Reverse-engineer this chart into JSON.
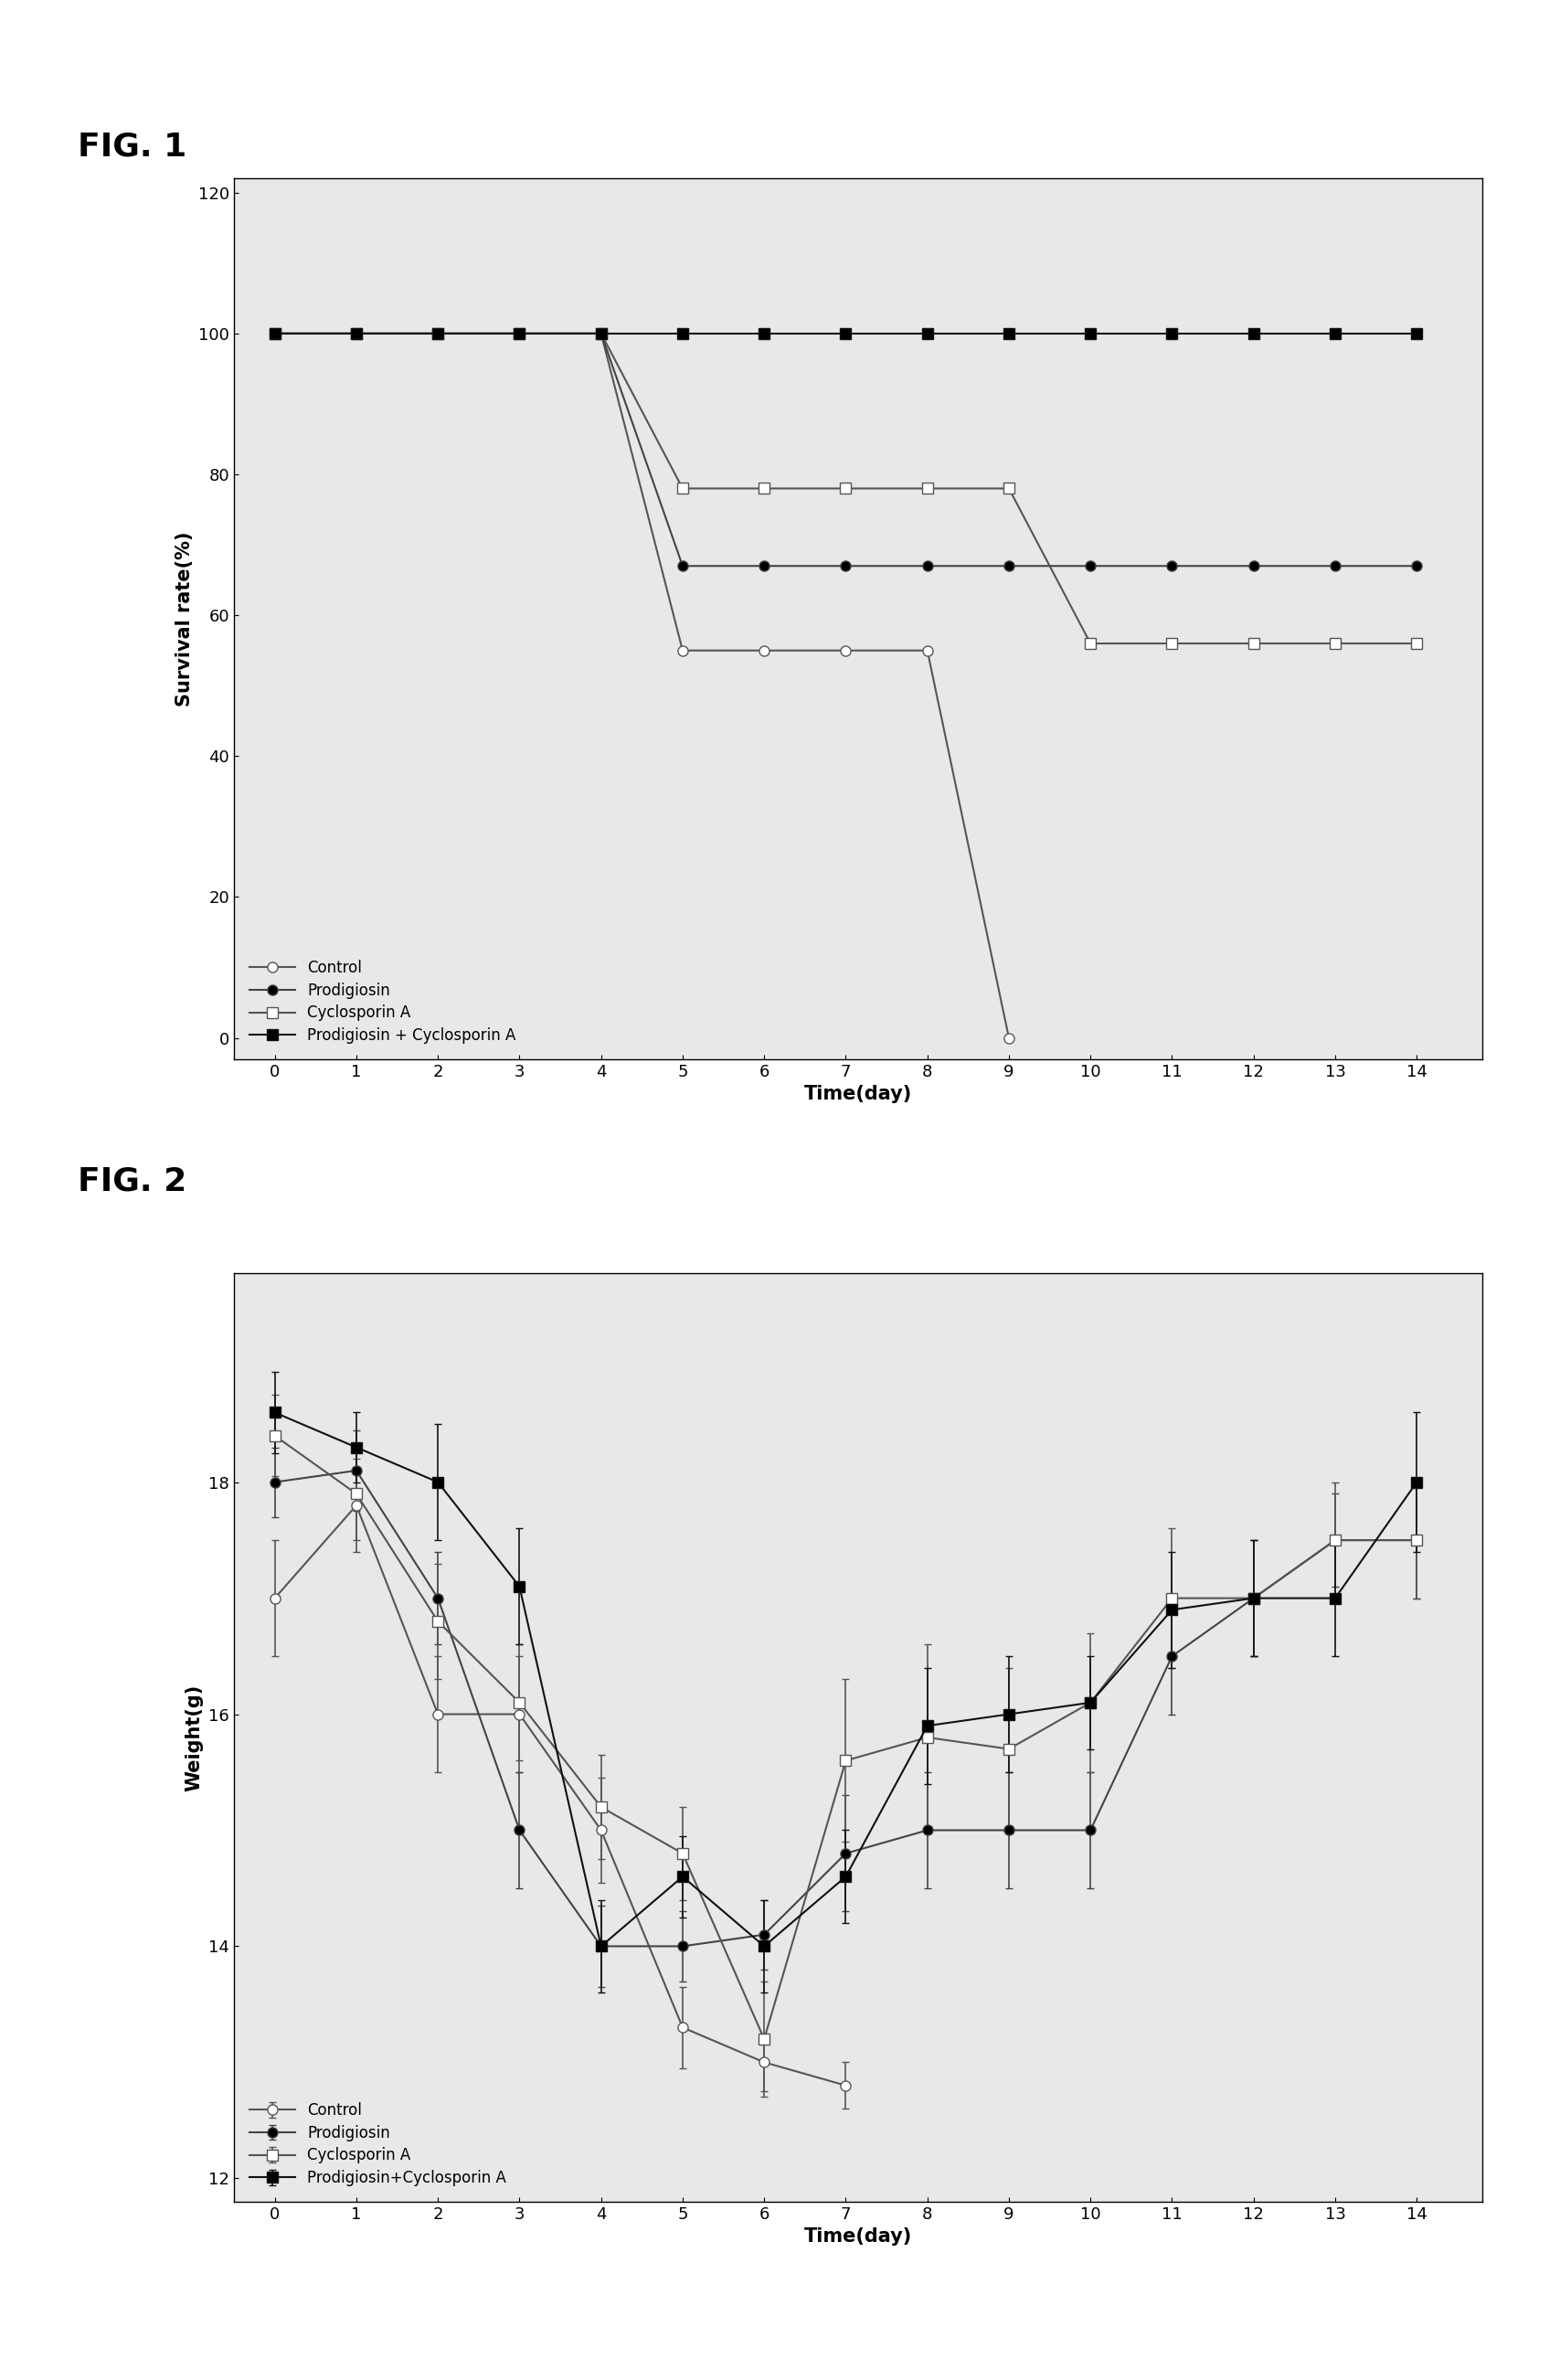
{
  "fig1": {
    "xlabel": "Time(day)",
    "ylabel": "Survival rate(%)",
    "xlim": [
      -0.5,
      14.8
    ],
    "ylim": [
      -3,
      122
    ],
    "yticks": [
      0,
      20,
      40,
      60,
      80,
      100,
      120
    ],
    "xticks": [
      0,
      1,
      2,
      3,
      4,
      5,
      6,
      7,
      8,
      9,
      10,
      11,
      12,
      13,
      14
    ],
    "series": [
      {
        "label": "Control",
        "x": [
          0,
          1,
          2,
          3,
          4,
          5,
          6,
          7,
          8,
          9
        ],
        "y": [
          100,
          100,
          100,
          100,
          100,
          55,
          55,
          55,
          55,
          0
        ],
        "marker": "o",
        "filled": false,
        "color": "#555555",
        "linewidth": 1.5,
        "markersize": 8
      },
      {
        "label": "Prodigiosin",
        "x": [
          0,
          1,
          2,
          3,
          4,
          5,
          6,
          7,
          8,
          9,
          10,
          11,
          12,
          13,
          14
        ],
        "y": [
          100,
          100,
          100,
          100,
          100,
          67,
          67,
          67,
          67,
          67,
          67,
          67,
          67,
          67,
          67
        ],
        "marker": "o",
        "filled": true,
        "color": "#444444",
        "linewidth": 1.5,
        "markersize": 8
      },
      {
        "label": "Cyclosporin A",
        "x": [
          0,
          1,
          2,
          3,
          4,
          5,
          6,
          7,
          8,
          9,
          10,
          11,
          12,
          13,
          14
        ],
        "y": [
          100,
          100,
          100,
          100,
          100,
          78,
          78,
          78,
          78,
          78,
          56,
          56,
          56,
          56,
          56
        ],
        "marker": "s",
        "filled": false,
        "color": "#555555",
        "linewidth": 1.5,
        "markersize": 8
      },
      {
        "label": "Prodigiosin + Cyclosporin A",
        "x": [
          0,
          1,
          2,
          3,
          4,
          5,
          6,
          7,
          8,
          9,
          10,
          11,
          12,
          13,
          14
        ],
        "y": [
          100,
          100,
          100,
          100,
          100,
          100,
          100,
          100,
          100,
          100,
          100,
          100,
          100,
          100,
          100
        ],
        "marker": "s",
        "filled": true,
        "color": "#111111",
        "linewidth": 1.5,
        "markersize": 8
      }
    ]
  },
  "fig2": {
    "xlabel": "Time(day)",
    "ylabel": "Weight(g)",
    "xlim": [
      -0.5,
      14.8
    ],
    "ylim": [
      11.8,
      19.8
    ],
    "yticks": [
      12,
      14,
      16,
      18
    ],
    "xticks": [
      0,
      1,
      2,
      3,
      4,
      5,
      6,
      7,
      8,
      9,
      10,
      11,
      12,
      13,
      14
    ],
    "series": [
      {
        "label": "Control",
        "x": [
          0,
          1,
          2,
          3,
          4,
          5,
          6,
          7
        ],
        "y": [
          17.0,
          17.8,
          16.0,
          16.0,
          15.0,
          13.3,
          13.0,
          12.8
        ],
        "yerr": [
          0.5,
          0.4,
          0.5,
          0.5,
          0.45,
          0.35,
          0.25,
          0.2
        ],
        "marker": "o",
        "filled": false,
        "color": "#555555",
        "linewidth": 1.5,
        "markersize": 8
      },
      {
        "label": "Prodigiosin",
        "x": [
          0,
          1,
          2,
          3,
          4,
          5,
          6,
          7,
          8,
          9,
          10,
          11,
          12,
          13,
          14
        ],
        "y": [
          18.0,
          18.1,
          17.0,
          15.0,
          14.0,
          14.0,
          14.1,
          14.8,
          15.0,
          15.0,
          15.0,
          16.5,
          17.0,
          17.5,
          17.5
        ],
        "yerr": [
          0.3,
          0.35,
          0.4,
          0.5,
          0.35,
          0.3,
          0.3,
          0.5,
          0.5,
          0.5,
          0.5,
          0.5,
          0.5,
          0.4,
          0.5
        ],
        "marker": "o",
        "filled": true,
        "color": "#444444",
        "linewidth": 1.5,
        "markersize": 8
      },
      {
        "label": "Cyclosporin A",
        "x": [
          0,
          1,
          2,
          3,
          4,
          5,
          6,
          7,
          8,
          9,
          10,
          11,
          12,
          13,
          14
        ],
        "y": [
          18.4,
          17.9,
          16.8,
          16.1,
          15.2,
          14.8,
          13.2,
          15.6,
          15.8,
          15.7,
          16.1,
          17.0,
          17.0,
          17.5,
          17.5
        ],
        "yerr": [
          0.35,
          0.4,
          0.5,
          0.5,
          0.45,
          0.4,
          0.5,
          0.7,
          0.8,
          0.7,
          0.6,
          0.6,
          0.5,
          0.5,
          0.5
        ],
        "marker": "s",
        "filled": false,
        "color": "#555555",
        "linewidth": 1.5,
        "markersize": 8
      },
      {
        "label": "Prodigiosin+Cyclosporin A",
        "x": [
          0,
          1,
          2,
          3,
          4,
          5,
          6,
          7,
          8,
          9,
          10,
          11,
          12,
          13,
          14
        ],
        "y": [
          18.6,
          18.3,
          18.0,
          17.1,
          14.0,
          14.6,
          14.0,
          14.6,
          15.9,
          16.0,
          16.1,
          16.9,
          17.0,
          17.0,
          18.0
        ],
        "yerr": [
          0.35,
          0.3,
          0.5,
          0.5,
          0.4,
          0.35,
          0.4,
          0.4,
          0.5,
          0.5,
          0.4,
          0.5,
          0.5,
          0.5,
          0.6
        ],
        "marker": "s",
        "filled": true,
        "color": "#111111",
        "linewidth": 1.5,
        "markersize": 8
      }
    ]
  },
  "fig_label_fontsize": 26,
  "axis_label_fontsize": 15,
  "tick_fontsize": 13,
  "legend_fontsize": 12,
  "background_color": "#ffffff",
  "plot_bg_color": "#e8e8e8"
}
